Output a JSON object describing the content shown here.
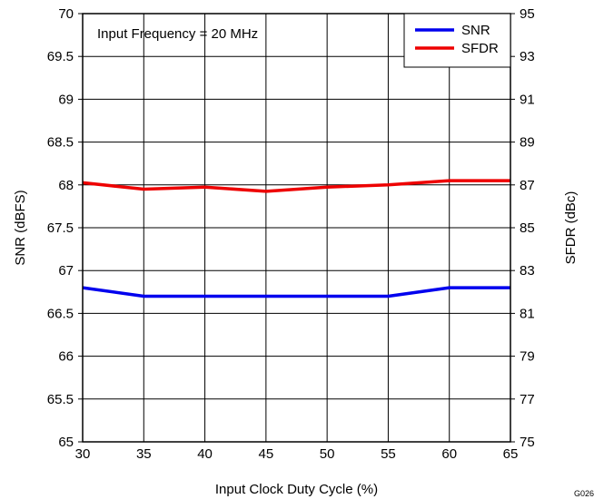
{
  "chart_data": {
    "type": "line",
    "x": [
      30,
      35,
      40,
      45,
      50,
      55,
      60,
      65
    ],
    "xlabel": "Input Clock Duty Cycle (%)",
    "ylabel": "SNR (dBFS)",
    "y2label": "SFDR (dBc)",
    "xlim": [
      30,
      65
    ],
    "ylim": [
      65,
      70
    ],
    "y2lim": [
      75,
      95
    ],
    "xticks": [
      "30",
      "35",
      "40",
      "45",
      "50",
      "55",
      "60",
      "65"
    ],
    "yticks": [
      "65",
      "65.5",
      "66",
      "66.5",
      "67",
      "67.5",
      "68",
      "68.5",
      "69",
      "69.5",
      "70"
    ],
    "y2ticks": [
      "75",
      "77",
      "79",
      "81",
      "83",
      "85",
      "87",
      "89",
      "91",
      "93",
      "95"
    ],
    "grid": true,
    "annotation": "Input Frequency = 20 MHz",
    "legend_position": "top-right",
    "figure_id": "G026",
    "series": [
      {
        "name": "SNR",
        "axis": "left",
        "color": "#0000ee",
        "values": [
          66.8,
          66.7,
          66.7,
          66.7,
          66.7,
          66.7,
          66.8,
          66.8
        ]
      },
      {
        "name": "SFDR",
        "axis": "right",
        "color": "#ee0000",
        "values": [
          87.1,
          86.8,
          86.9,
          86.7,
          86.9,
          87.0,
          87.2,
          87.2
        ]
      }
    ]
  }
}
